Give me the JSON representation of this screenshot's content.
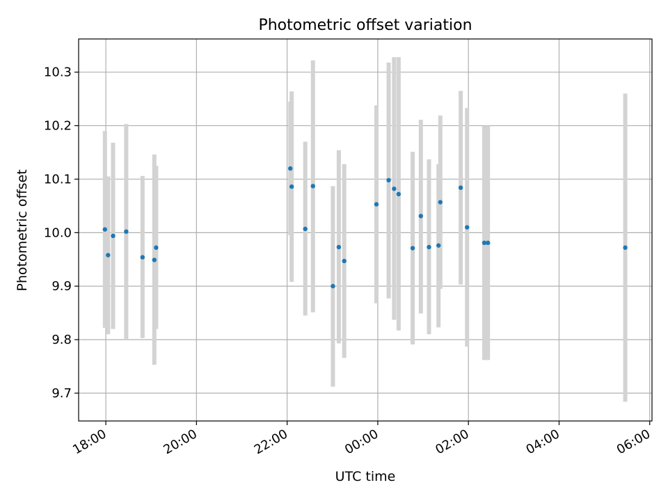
{
  "chart_data": {
    "type": "scatter",
    "title": "Photometric offset variation",
    "xlabel": "UTC time",
    "ylabel": "Photometric offset",
    "x_unit": "hours since 18:00 UTC",
    "xlim": [
      -0.6,
      12.05
    ],
    "ylim": [
      9.648,
      10.362
    ],
    "grid": true,
    "x_ticks": [
      {
        "value": 0,
        "label": "18:00"
      },
      {
        "value": 2,
        "label": "20:00"
      },
      {
        "value": 4,
        "label": "22:00"
      },
      {
        "value": 6,
        "label": "00:00"
      },
      {
        "value": 8,
        "label": "02:00"
      },
      {
        "value": 10,
        "label": "04:00"
      },
      {
        "value": 12,
        "label": "06:00"
      }
    ],
    "y_ticks": [
      {
        "value": 9.7,
        "label": "9.7"
      },
      {
        "value": 9.8,
        "label": "9.8"
      },
      {
        "value": 9.9,
        "label": "9.9"
      },
      {
        "value": 10.0,
        "label": "10.0"
      },
      {
        "value": 10.1,
        "label": "10.1"
      },
      {
        "value": 10.2,
        "label": "10.2"
      },
      {
        "value": 10.3,
        "label": "10.3"
      }
    ],
    "colors": {
      "point": "#1f77b4",
      "errorbar": "#d3d3d3",
      "grid": "#b0b0b0",
      "axis": "#000000"
    },
    "series": [
      {
        "name": "offset",
        "points": [
          {
            "x": -0.02,
            "y": 10.006,
            "ylow": 9.822,
            "yhigh": 10.19
          },
          {
            "x": 0.05,
            "y": 9.958,
            "ylow": 9.81,
            "yhigh": 10.105
          },
          {
            "x": 0.16,
            "y": 9.994,
            "ylow": 9.82,
            "yhigh": 10.168
          },
          {
            "x": 0.45,
            "y": 10.002,
            "ylow": 9.8,
            "yhigh": 10.203
          },
          {
            "x": 0.81,
            "y": 9.954,
            "ylow": 9.803,
            "yhigh": 10.106
          },
          {
            "x": 1.07,
            "y": 9.949,
            "ylow": 9.753,
            "yhigh": 10.146
          },
          {
            "x": 1.11,
            "y": 9.972,
            "ylow": 9.82,
            "yhigh": 10.125
          },
          {
            "x": 4.07,
            "y": 10.12,
            "ylow": 9.995,
            "yhigh": 10.245
          },
          {
            "x": 4.1,
            "y": 10.086,
            "ylow": 9.908,
            "yhigh": 10.264
          },
          {
            "x": 4.4,
            "y": 10.007,
            "ylow": 9.845,
            "yhigh": 10.17
          },
          {
            "x": 4.57,
            "y": 10.087,
            "ylow": 9.851,
            "yhigh": 10.322
          },
          {
            "x": 5.01,
            "y": 9.9,
            "ylow": 9.712,
            "yhigh": 10.087
          },
          {
            "x": 5.14,
            "y": 9.973,
            "ylow": 9.793,
            "yhigh": 10.154
          },
          {
            "x": 5.26,
            "y": 9.947,
            "ylow": 9.766,
            "yhigh": 10.128
          },
          {
            "x": 5.97,
            "y": 10.053,
            "ylow": 9.868,
            "yhigh": 10.238
          },
          {
            "x": 6.24,
            "y": 10.098,
            "ylow": 9.877,
            "yhigh": 10.318
          },
          {
            "x": 6.36,
            "y": 10.082,
            "ylow": 9.837,
            "yhigh": 10.328
          },
          {
            "x": 6.46,
            "y": 10.072,
            "ylow": 9.817,
            "yhigh": 10.328
          },
          {
            "x": 6.77,
            "y": 9.971,
            "ylow": 9.791,
            "yhigh": 10.151
          },
          {
            "x": 6.95,
            "y": 10.031,
            "ylow": 9.849,
            "yhigh": 10.211
          },
          {
            "x": 7.13,
            "y": 9.973,
            "ylow": 9.81,
            "yhigh": 10.137
          },
          {
            "x": 7.34,
            "y": 9.976,
            "ylow": 9.823,
            "yhigh": 10.128
          },
          {
            "x": 7.38,
            "y": 10.057,
            "ylow": 9.895,
            "yhigh": 10.219
          },
          {
            "x": 7.83,
            "y": 10.084,
            "ylow": 9.903,
            "yhigh": 10.265
          },
          {
            "x": 7.97,
            "y": 10.01,
            "ylow": 9.787,
            "yhigh": 10.233
          },
          {
            "x": 8.35,
            "y": 9.981,
            "ylow": 9.762,
            "yhigh": 10.2
          },
          {
            "x": 8.43,
            "y": 9.981,
            "ylow": 9.762,
            "yhigh": 10.2
          },
          {
            "x": 11.46,
            "y": 9.972,
            "ylow": 9.684,
            "yhigh": 10.26
          }
        ]
      }
    ]
  }
}
